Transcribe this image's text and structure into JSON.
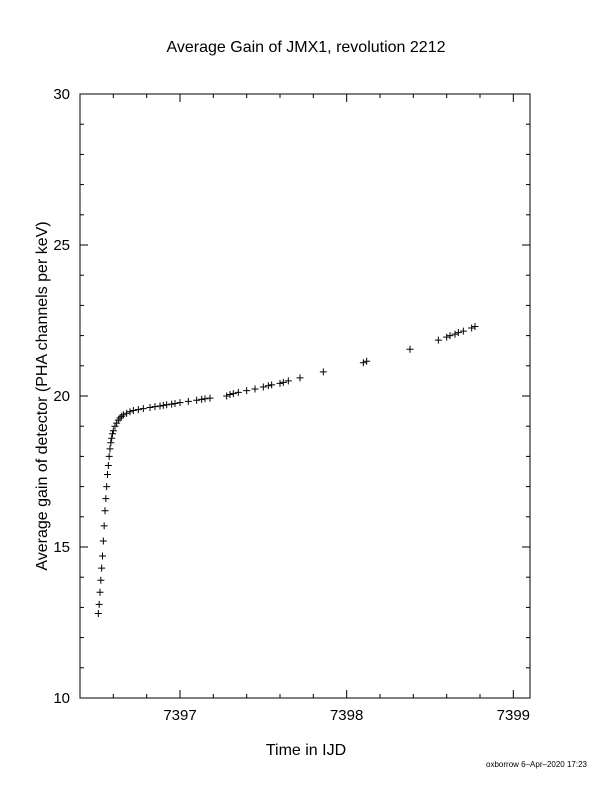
{
  "chart_data": {
    "type": "scatter",
    "title": "Average Gain of JMX1, revolution 2212",
    "xlabel": "Time in IJD",
    "ylabel": "Average gain of detector (PHA channels per keV)",
    "xlim": [
      7396.4,
      7399.1
    ],
    "ylim": [
      10,
      30
    ],
    "xticks": [
      7397,
      7398,
      7399
    ],
    "yticks": [
      10,
      15,
      20,
      25,
      30
    ],
    "grid": false,
    "marker": "+",
    "footer": "oxborrow  6–Apr–2020 17:23",
    "series": [
      {
        "x": [
          7396.51,
          7396.515,
          7396.52,
          7396.525,
          7396.53,
          7396.535,
          7396.54,
          7396.545,
          7396.55,
          7396.555,
          7396.56,
          7396.565,
          7396.57,
          7396.575,
          7396.58,
          7396.585,
          7396.59,
          7396.595,
          7396.6,
          7396.61,
          7396.62,
          7396.63,
          7396.64,
          7396.65,
          7396.66,
          7396.68,
          7396.7,
          7396.72,
          7396.75,
          7396.78,
          7396.82,
          7396.85,
          7396.88,
          7396.9,
          7396.92,
          7396.95,
          7396.97,
          7397.0,
          7397.05,
          7397.1,
          7397.13,
          7397.15,
          7397.18,
          7397.28,
          7397.3,
          7397.32,
          7397.35,
          7397.4,
          7397.45,
          7397.5,
          7397.53,
          7397.55,
          7397.6,
          7397.62,
          7397.65,
          7397.72,
          7397.86,
          7398.1,
          7398.12,
          7398.38,
          7398.55,
          7398.6,
          7398.62,
          7398.65,
          7398.67,
          7398.7,
          7398.75,
          7398.77
        ],
        "y": [
          12.8,
          13.1,
          13.5,
          13.9,
          14.3,
          14.7,
          15.2,
          15.7,
          16.2,
          16.6,
          17.0,
          17.4,
          17.7,
          18.0,
          18.25,
          18.45,
          18.6,
          18.75,
          18.85,
          19.0,
          19.1,
          19.2,
          19.27,
          19.33,
          19.38,
          19.43,
          19.48,
          19.52,
          19.55,
          19.58,
          19.62,
          19.65,
          19.67,
          19.69,
          19.71,
          19.73,
          19.75,
          19.78,
          19.82,
          19.86,
          19.89,
          19.91,
          19.93,
          20.0,
          20.05,
          20.08,
          20.12,
          20.18,
          20.23,
          20.3,
          20.34,
          20.37,
          20.42,
          20.45,
          20.5,
          20.6,
          20.8,
          21.1,
          21.15,
          21.55,
          21.85,
          21.95,
          22.0,
          22.05,
          22.1,
          22.15,
          22.25,
          22.3
        ]
      }
    ]
  }
}
